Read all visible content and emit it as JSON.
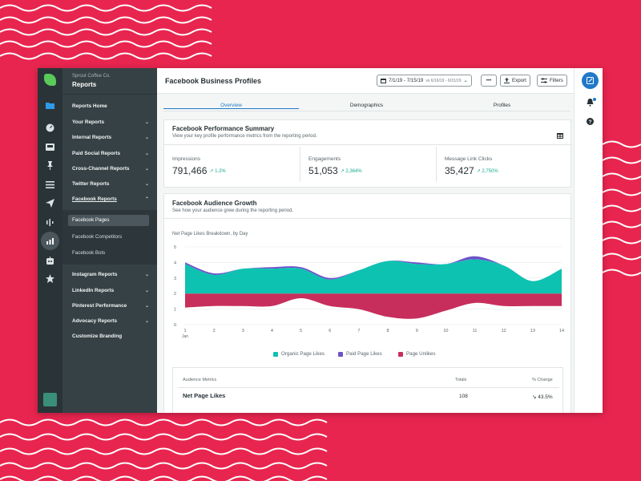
{
  "sidebar": {
    "org": "Sprout Coffee Co.",
    "title": "Reports",
    "items": [
      {
        "label": "Reports Home",
        "chevron": ""
      },
      {
        "label": "Your Reports",
        "chevron": "⌄"
      },
      {
        "label": "Internal Reports",
        "chevron": "⌄"
      },
      {
        "label": "Paid Social Reports",
        "chevron": "⌄"
      },
      {
        "label": "Cross-Channel Reports",
        "chevron": "⌄"
      },
      {
        "label": "Twitter Reports",
        "chevron": "⌄"
      },
      {
        "label": "Facebook Reports",
        "chevron": "⌃"
      },
      {
        "label": "Instagram Reports",
        "chevron": "⌄"
      },
      {
        "label": "LinkedIn Reports",
        "chevron": "⌄"
      },
      {
        "label": "Pinterest Performance",
        "chevron": "⌄"
      },
      {
        "label": "Advocacy Reports",
        "chevron": "⌄"
      },
      {
        "label": "Customize Branding",
        "chevron": ""
      }
    ],
    "subitems": [
      {
        "label": "Facebook Pages"
      },
      {
        "label": "Facebook Competitors"
      },
      {
        "label": "Facebook Bots"
      }
    ]
  },
  "rail_icons": [
    "folder-icon",
    "gauge-icon",
    "inbox-icon",
    "pin-icon",
    "list-icon",
    "send-icon",
    "audio-icon",
    "reports-icon",
    "bot-icon",
    "star-icon"
  ],
  "header": {
    "title": "Facebook Business Profiles",
    "date_range": "7/1/19 - 7/15/19",
    "compare_range": "vs 6/16/19 - 6/31/19",
    "more_label": "•••",
    "export_label": "Export",
    "filters_label": "Filters"
  },
  "tabs": [
    {
      "label": "Overview",
      "active": true
    },
    {
      "label": "Demographics",
      "active": false
    },
    {
      "label": "Profiles",
      "active": false
    }
  ],
  "summary": {
    "title": "Facebook Performance Summary",
    "subtitle": "View your key profile performance metrics from the reporting period.",
    "metrics": [
      {
        "label": "Impressions",
        "value": "791,466",
        "change": "↗ 1.2%"
      },
      {
        "label": "Engagements",
        "value": "51,053",
        "change": "↗ 2,364%"
      },
      {
        "label": "Message Link Clicks",
        "value": "35,427",
        "change": "↗ 2,750%"
      }
    ]
  },
  "growth": {
    "title": "Facebook Audience Growth",
    "subtitle": "See how your audience grew during the reporting period.",
    "chart_label": "Net Page Likes Breakdown, by Day"
  },
  "chart_data": {
    "type": "area",
    "title": "Net Page Likes Breakdown, by Day",
    "x": [
      1,
      2,
      3,
      4,
      5,
      6,
      7,
      8,
      9,
      10,
      11,
      12,
      13,
      14
    ],
    "x_tick_labels": [
      "1",
      "2",
      "3",
      "4",
      "5",
      "6",
      "7",
      "8",
      "9",
      "10",
      "11",
      "12",
      "13",
      "14"
    ],
    "x_sublabel": "Jan",
    "y_ticks": [
      "0",
      "1",
      "2",
      "3",
      "4",
      "5"
    ],
    "ylim": [
      0,
      5
    ],
    "baseline": 2,
    "series": [
      {
        "name": "Organic Page Likes",
        "color": "#0ec2b1",
        "values": [
          1.9,
          1.2,
          1.6,
          1.6,
          1.6,
          0.9,
          1.5,
          2.1,
          1.9,
          1.9,
          2.2,
          1.8,
          0.8,
          1.6
        ]
      },
      {
        "name": "Paid Page Likes",
        "color": "#6e52c9",
        "values": [
          0.1,
          0.1,
          0.0,
          0.1,
          0.1,
          0.1,
          0.0,
          0.0,
          0.1,
          0.0,
          0.2,
          0.0,
          0.0,
          0.0
        ]
      },
      {
        "name": "Page Unlikes",
        "color": "#c72e5c",
        "values": [
          -0.9,
          -0.8,
          -0.8,
          -0.8,
          -0.3,
          -0.8,
          -1.0,
          -1.5,
          -1.6,
          -1.1,
          -0.6,
          -0.8,
          -0.8,
          -0.8
        ]
      }
    ]
  },
  "table": {
    "col_metric": "Audience Metrics",
    "col_totals": "Totals",
    "col_change": "% Change",
    "row_label": "Net Page Likes",
    "row_total": "108",
    "row_change": "↘ 43.5%"
  }
}
